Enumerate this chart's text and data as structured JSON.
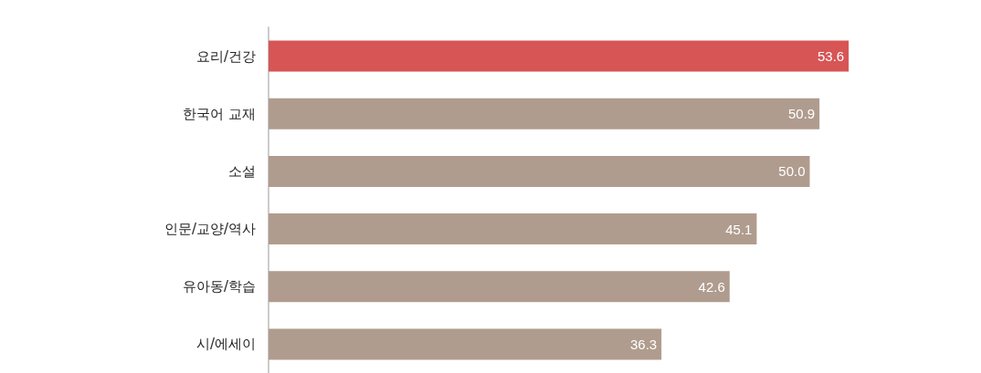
{
  "chart_data": {
    "type": "bar",
    "orientation": "horizontal",
    "categories": [
      "요리/건강",
      "한국어 교재",
      "소설",
      "인문/교양/역사",
      "유아동/학습",
      "시/에세이"
    ],
    "values": [
      53.6,
      50.9,
      50.0,
      45.1,
      42.6,
      36.3
    ],
    "colors": [
      "#d75555",
      "#b09c8e",
      "#b09c8e",
      "#b09c8e",
      "#b09c8e",
      "#b09c8e"
    ],
    "value_labels": [
      "53.6",
      "50.9",
      "50.0",
      "45.1",
      "42.6",
      "36.3"
    ]
  }
}
